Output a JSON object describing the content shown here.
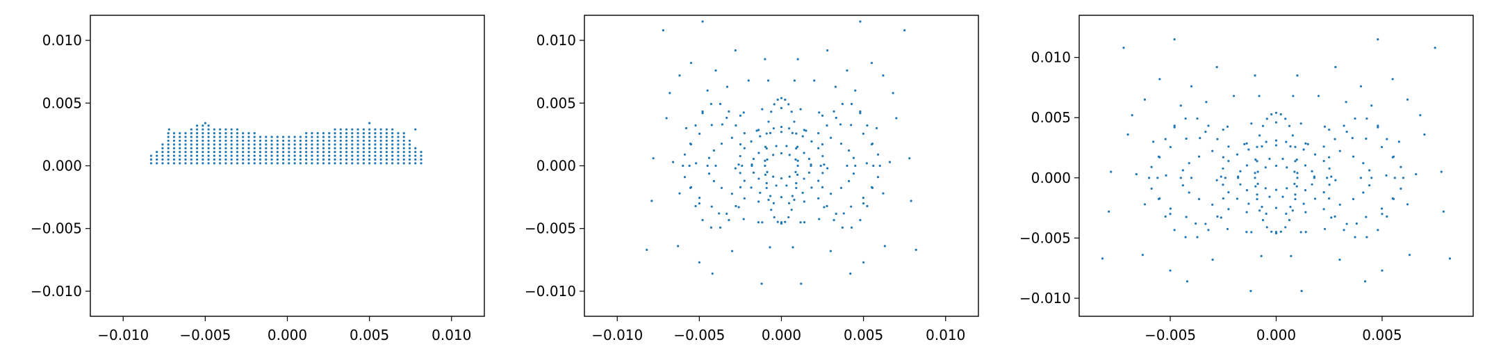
{
  "chart_data": [
    {
      "type": "scatter",
      "title": "",
      "xlabel": "",
      "ylabel": "",
      "xlim": [
        -0.012,
        0.012
      ],
      "ylim": [
        -0.012,
        0.012
      ],
      "xticks": [
        -0.01,
        -0.005,
        0.0,
        0.005,
        0.01
      ],
      "yticks": [
        -0.01,
        -0.005,
        0.0,
        0.005,
        0.01
      ],
      "xtick_labels": [
        "−0.010",
        "−0.005",
        "0.000",
        "0.005",
        "0.010"
      ],
      "ytick_labels": [
        "−0.010",
        "−0.005",
        "0.000",
        "0.005",
        "0.010"
      ],
      "grid": false,
      "point_color": "#1f77b4",
      "description_of_points": "dense rectangular lattice of points",
      "lattice": {
        "x_from": -0.0083,
        "x_to": 0.0083,
        "x_step": 0.00035,
        "y_from": 0.0002,
        "y_step": 0.0003,
        "top_profile": [
          [
            -0.0083,
            0.001
          ],
          [
            -0.008,
            0.0013
          ],
          [
            -0.0076,
            0.0018
          ],
          [
            -0.0072,
            0.0028
          ],
          [
            -0.006,
            0.0029
          ],
          [
            -0.0055,
            0.0032
          ],
          [
            -0.0045,
            0.0032
          ],
          [
            -0.003,
            0.0029
          ],
          [
            -0.002,
            0.0026
          ],
          [
            0.0,
            0.0025
          ],
          [
            0.002,
            0.0027
          ],
          [
            0.003,
            0.003
          ],
          [
            0.004,
            0.0032
          ],
          [
            0.0055,
            0.0031
          ],
          [
            0.007,
            0.0028
          ],
          [
            0.0076,
            0.002
          ],
          [
            0.008,
            0.0013
          ],
          [
            0.0083,
            0.001
          ]
        ],
        "outliers": [
          [
            -0.0072,
            0.0029
          ],
          [
            -0.005,
            0.0034
          ],
          [
            0.005,
            0.0034
          ],
          [
            0.0078,
            0.0029
          ]
        ]
      }
    },
    {
      "type": "scatter",
      "title": "",
      "xlabel": "",
      "ylabel": "",
      "xlim": [
        -0.012,
        0.012
      ],
      "ylim": [
        -0.012,
        0.012
      ],
      "xticks": [
        -0.01,
        -0.005,
        0.0,
        0.005,
        0.01
      ],
      "yticks": [
        -0.01,
        -0.005,
        0.0,
        0.005,
        0.01
      ],
      "xtick_labels": [
        "−0.010",
        "−0.005",
        "0.000",
        "0.005",
        "0.010"
      ],
      "ytick_labels": [
        "−0.010",
        "−0.005",
        "0.000",
        "0.005",
        "0.010"
      ],
      "grid": false,
      "point_color": "#1f77b4",
      "points": [
        [
          -0.0072,
          0.0108
        ],
        [
          -0.0048,
          0.0115
        ],
        [
          0.0048,
          0.0115
        ],
        [
          0.0075,
          0.0108
        ],
        [
          -0.0055,
          0.0082
        ],
        [
          0.0055,
          0.0082
        ],
        [
          -0.004,
          0.0076
        ],
        [
          0.004,
          0.0076
        ],
        [
          -0.0028,
          0.0092
        ],
        [
          0.0028,
          0.0092
        ],
        [
          -0.001,
          0.0085
        ],
        [
          0.001,
          0.0085
        ],
        [
          -0.0008,
          0.0068
        ],
        [
          0.0008,
          0.0068
        ],
        [
          -0.0062,
          0.0072
        ],
        [
          0.0062,
          0.0072
        ],
        [
          -0.0068,
          0.0058
        ],
        [
          0.0068,
          0.0058
        ],
        [
          -0.0045,
          0.006
        ],
        [
          0.0045,
          0.006
        ],
        [
          -0.0033,
          0.0063
        ],
        [
          0.0033,
          0.0063
        ],
        [
          -0.002,
          0.0068
        ],
        [
          0.002,
          0.0068
        ],
        [
          -0.007,
          0.0038
        ],
        [
          0.007,
          0.0038
        ],
        [
          -0.0058,
          0.003
        ],
        [
          0.0058,
          0.003
        ],
        [
          -0.0048,
          0.0042
        ],
        [
          0.0048,
          0.0042
        ],
        [
          -0.0036,
          0.0033
        ],
        [
          0.0036,
          0.0033
        ],
        [
          -0.0025,
          0.004
        ],
        [
          0.0025,
          0.004
        ],
        [
          -0.0015,
          0.0028
        ],
        [
          0.0015,
          0.0028
        ],
        [
          -0.0078,
          0.0006
        ],
        [
          0.0078,
          0.0006
        ],
        [
          -0.0066,
          0.0003
        ],
        [
          0.0066,
          0.0003
        ],
        [
          -0.0052,
          0.0002
        ],
        [
          0.0052,
          0.0002
        ],
        [
          -0.004,
          0.0
        ],
        [
          0.004,
          0.0
        ],
        [
          -0.0028,
          -0.0002
        ],
        [
          0.0028,
          -0.0002
        ],
        [
          -0.0018,
          0.0001
        ],
        [
          0.0018,
          0.0001
        ],
        [
          -0.0079,
          -0.0028
        ],
        [
          0.0079,
          -0.0028
        ],
        [
          -0.0062,
          -0.0022
        ],
        [
          0.0062,
          -0.0022
        ],
        [
          -0.005,
          -0.003
        ],
        [
          0.005,
          -0.003
        ],
        [
          -0.0038,
          -0.0038
        ],
        [
          0.0038,
          -0.0038
        ],
        [
          -0.0026,
          -0.0033
        ],
        [
          0.0026,
          -0.0033
        ],
        [
          -0.0014,
          -0.0045
        ],
        [
          0.0014,
          -0.0045
        ],
        [
          -0.0082,
          -0.0067
        ],
        [
          0.0082,
          -0.0067
        ],
        [
          -0.0063,
          -0.0064
        ],
        [
          0.0063,
          -0.0064
        ],
        [
          -0.005,
          -0.0077
        ],
        [
          0.005,
          -0.0077
        ],
        [
          -0.0042,
          -0.0086
        ],
        [
          0.0042,
          -0.0086
        ],
        [
          -0.003,
          -0.0068
        ],
        [
          0.003,
          -0.0068
        ],
        [
          -0.0012,
          -0.0094
        ],
        [
          0.0012,
          -0.0094
        ],
        [
          -0.0007,
          -0.0065
        ],
        [
          0.0007,
          -0.0065
        ],
        [
          0.0,
          0.0031
        ],
        [
          0.0,
          -0.0045
        ]
      ],
      "rings": [
        {
          "cx": 0.0,
          "cy": 0.0,
          "rx": 0.001,
          "ry": 0.001,
          "n": 12
        },
        {
          "cx": 0.0,
          "cy": 0.0,
          "rx": 0.0018,
          "ry": 0.0016,
          "n": 18
        },
        {
          "cx": 0.0,
          "cy": 0.0001,
          "rx": 0.0026,
          "ry": 0.0026,
          "n": 24
        },
        {
          "cx": 0.0,
          "cy": 0.0004,
          "rx": 0.001,
          "ry": 0.005,
          "n": 28
        },
        {
          "cx": 0.0,
          "cy": 0.0,
          "rx": 0.0045,
          "ry": 0.003,
          "n": 30
        },
        {
          "cx": 0.0,
          "cy": 0.0,
          "rx": 0.006,
          "ry": 0.0046,
          "n": 32
        },
        {
          "cx": -0.004,
          "cy": 0.0,
          "rx": 0.0016,
          "ry": 0.005,
          "n": 18
        },
        {
          "cx": 0.004,
          "cy": 0.0,
          "rx": 0.0016,
          "ry": 0.005,
          "n": 18
        }
      ]
    },
    {
      "type": "scatter",
      "title": "",
      "xlabel": "",
      "ylabel": "",
      "xlim": [
        -0.0093,
        0.0093
      ],
      "ylim": [
        -0.0115,
        0.0135
      ],
      "xticks": [
        -0.005,
        0.0,
        0.005
      ],
      "yticks": [
        -0.01,
        -0.005,
        0.0,
        0.005,
        0.01
      ],
      "xtick_labels": [
        "−0.005",
        "0.000",
        "0.005"
      ],
      "ytick_labels": [
        "−0.010",
        "−0.005",
        "0.000",
        "0.005",
        "0.010"
      ],
      "grid": false,
      "point_color": "#1f77b4",
      "points": [
        [
          -0.0072,
          0.0108
        ],
        [
          -0.0048,
          0.0115
        ],
        [
          0.0048,
          0.0115
        ],
        [
          0.0075,
          0.0108
        ],
        [
          -0.0055,
          0.0082
        ],
        [
          0.0055,
          0.0082
        ],
        [
          -0.004,
          0.0076
        ],
        [
          0.004,
          0.0076
        ],
        [
          -0.0028,
          0.0092
        ],
        [
          0.0028,
          0.0092
        ],
        [
          -0.001,
          0.0085
        ],
        [
          0.001,
          0.0085
        ],
        [
          -0.0008,
          0.0068
        ],
        [
          0.0008,
          0.0068
        ],
        [
          -0.0062,
          0.0065
        ],
        [
          0.0062,
          0.0065
        ],
        [
          -0.0068,
          0.0052
        ],
        [
          0.0068,
          0.0052
        ],
        [
          -0.0045,
          0.006
        ],
        [
          0.0045,
          0.006
        ],
        [
          -0.0033,
          0.0063
        ],
        [
          0.0033,
          0.0063
        ],
        [
          -0.002,
          0.0068
        ],
        [
          0.002,
          0.0068
        ],
        [
          -0.007,
          0.0036
        ],
        [
          0.007,
          0.0036
        ],
        [
          -0.0058,
          0.003
        ],
        [
          0.0058,
          0.003
        ],
        [
          -0.0048,
          0.0042
        ],
        [
          0.0048,
          0.0042
        ],
        [
          -0.0036,
          0.0033
        ],
        [
          0.0036,
          0.0033
        ],
        [
          -0.0025,
          0.004
        ],
        [
          0.0025,
          0.004
        ],
        [
          -0.0015,
          0.0028
        ],
        [
          0.0015,
          0.0028
        ],
        [
          -0.0078,
          0.0005
        ],
        [
          0.0078,
          0.0005
        ],
        [
          -0.0066,
          0.0003
        ],
        [
          0.0066,
          0.0003
        ],
        [
          -0.0052,
          0.0002
        ],
        [
          0.0052,
          0.0002
        ],
        [
          -0.004,
          0.0
        ],
        [
          0.004,
          0.0
        ],
        [
          -0.0028,
          -0.0002
        ],
        [
          0.0028,
          -0.0002
        ],
        [
          -0.0018,
          0.0001
        ],
        [
          0.0018,
          0.0001
        ],
        [
          -0.0079,
          -0.0028
        ],
        [
          0.0079,
          -0.0028
        ],
        [
          -0.0062,
          -0.0022
        ],
        [
          0.0062,
          -0.0022
        ],
        [
          -0.005,
          -0.003
        ],
        [
          0.005,
          -0.003
        ],
        [
          -0.0038,
          -0.0038
        ],
        [
          0.0038,
          -0.0038
        ],
        [
          -0.0026,
          -0.0033
        ],
        [
          0.0026,
          -0.0033
        ],
        [
          -0.0014,
          -0.0045
        ],
        [
          0.0014,
          -0.0045
        ],
        [
          -0.0082,
          -0.0067
        ],
        [
          0.0082,
          -0.0067
        ],
        [
          -0.0063,
          -0.0064
        ],
        [
          0.0063,
          -0.0064
        ],
        [
          -0.005,
          -0.0077
        ],
        [
          0.005,
          -0.0077
        ],
        [
          -0.0042,
          -0.0086
        ],
        [
          0.0042,
          -0.0086
        ],
        [
          -0.003,
          -0.0068
        ],
        [
          0.003,
          -0.0068
        ],
        [
          -0.0012,
          -0.0094
        ],
        [
          0.0012,
          -0.0094
        ],
        [
          -0.0007,
          -0.0065
        ],
        [
          0.0007,
          -0.0065
        ],
        [
          0.0,
          0.0031
        ],
        [
          0.0,
          -0.0045
        ]
      ],
      "rings": [
        {
          "cx": 0.0,
          "cy": 0.0,
          "rx": 0.001,
          "ry": 0.001,
          "n": 12
        },
        {
          "cx": 0.0,
          "cy": 0.0,
          "rx": 0.0018,
          "ry": 0.0016,
          "n": 18
        },
        {
          "cx": 0.0,
          "cy": 0.0001,
          "rx": 0.0026,
          "ry": 0.0026,
          "n": 24
        },
        {
          "cx": 0.0,
          "cy": 0.0004,
          "rx": 0.001,
          "ry": 0.005,
          "n": 28
        },
        {
          "cx": 0.0,
          "cy": 0.0,
          "rx": 0.0045,
          "ry": 0.003,
          "n": 30
        },
        {
          "cx": 0.0,
          "cy": 0.0,
          "rx": 0.006,
          "ry": 0.0046,
          "n": 32
        },
        {
          "cx": -0.004,
          "cy": 0.0,
          "rx": 0.0016,
          "ry": 0.005,
          "n": 18
        },
        {
          "cx": 0.004,
          "cy": 0.0,
          "rx": 0.0016,
          "ry": 0.005,
          "n": 18
        }
      ]
    }
  ]
}
